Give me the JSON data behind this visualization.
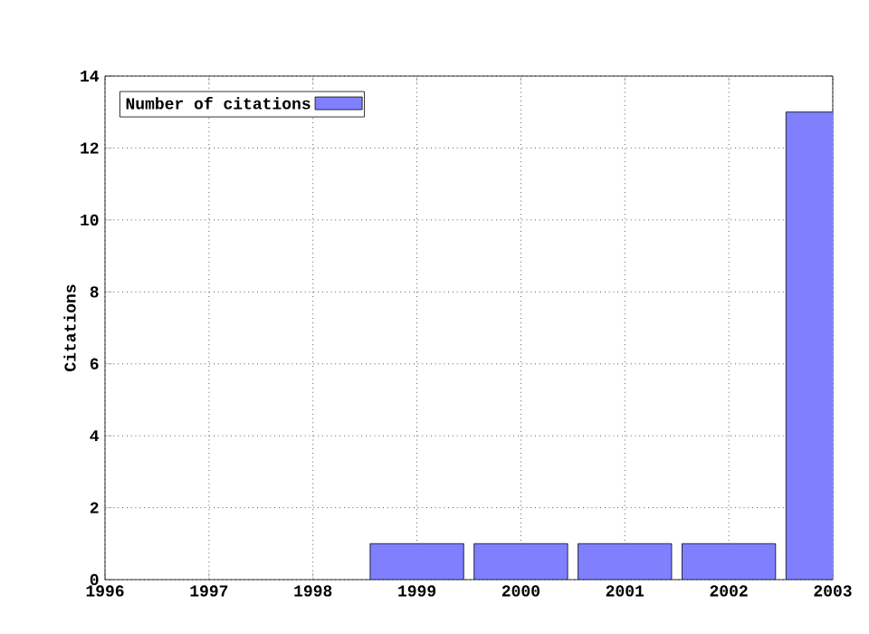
{
  "chart_data": {
    "type": "bar",
    "ylabel": "Citations",
    "x": [
      1999,
      2000,
      2001,
      2002,
      2003
    ],
    "series": [
      {
        "name": "Number of citations",
        "color": "#8080ff",
        "values": [
          1,
          1,
          1,
          1,
          13
        ]
      }
    ],
    "xlim": [
      1996,
      2003
    ],
    "xticks": [
      1996,
      1997,
      1998,
      1999,
      2000,
      2001,
      2002,
      2003
    ],
    "ylim": [
      0,
      14
    ],
    "yticks": [
      0,
      2,
      4,
      6,
      8,
      10,
      12,
      14
    ],
    "grid": true,
    "legend": "top left"
  }
}
